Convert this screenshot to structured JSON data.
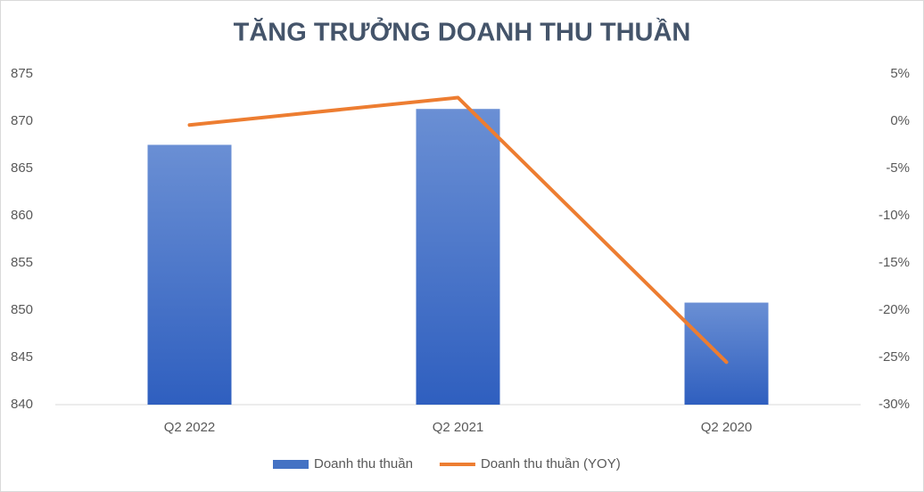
{
  "chart_data": {
    "type": "bar",
    "title": "TĂNG TRƯỞNG DOANH THU THUẦN",
    "categories": [
      "Q2 2022",
      "Q2 2021",
      "Q2 2020"
    ],
    "series": [
      {
        "name": "Doanh thu thuần",
        "type": "bar",
        "color": "#4472c4",
        "values": [
          867.5,
          871.3,
          850.8
        ]
      },
      {
        "name": "Doanh thu thuần (YOY)",
        "type": "line",
        "axis": "y2",
        "color": "#ed7d31",
        "values": [
          -0.4,
          2.5,
          -25.5
        ]
      }
    ],
    "ylim": [
      840,
      875
    ],
    "yticks": [
      840,
      845,
      850,
      855,
      860,
      865,
      870,
      875
    ],
    "y2lim": [
      -30,
      5
    ],
    "y2ticks": [
      {
        "value": -30,
        "label": "-30%"
      },
      {
        "value": -25,
        "label": "-25%"
      },
      {
        "value": -20,
        "label": "-20%"
      },
      {
        "value": -15,
        "label": "-15%"
      },
      {
        "value": -10,
        "label": "-10%"
      },
      {
        "value": -5,
        "label": "-5%"
      },
      {
        "value": 0,
        "label": "0%"
      },
      {
        "value": 5,
        "label": "5%"
      }
    ],
    "grid": false,
    "legend": "bottom"
  }
}
